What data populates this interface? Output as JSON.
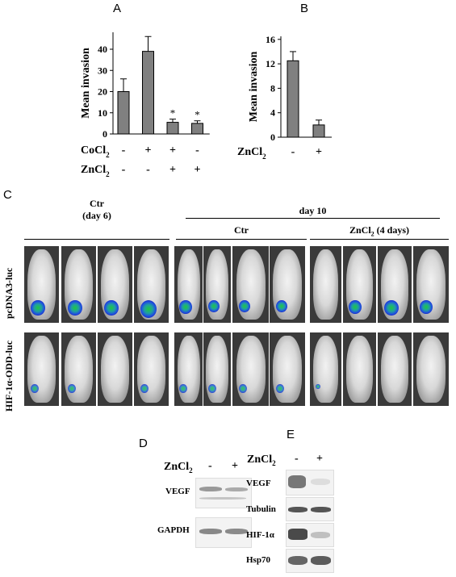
{
  "panels": {
    "A": {
      "letter": "A",
      "chart_data": {
        "type": "bar",
        "ylabel": "Mean invasion",
        "yticks": [
          0,
          10,
          20,
          30,
          40
        ],
        "ylim": [
          0,
          48
        ],
        "values": [
          20,
          39,
          5.5,
          5
        ],
        "errors": [
          6,
          7,
          1.5,
          1.2
        ],
        "significance": [
          "",
          "",
          "*",
          "*"
        ],
        "treatment_rows": [
          {
            "label": "CoCl",
            "sub": "2",
            "marks": [
              "-",
              "+",
              "+",
              "-"
            ]
          },
          {
            "label": "ZnCl",
            "sub": "2",
            "marks": [
              "-",
              "-",
              "+",
              "+"
            ]
          }
        ],
        "bar_color": "#808080"
      }
    },
    "B": {
      "letter": "B",
      "chart_data": {
        "type": "bar",
        "ylabel": "Mean invasion",
        "yticks": [
          0,
          4,
          8,
          12,
          16
        ],
        "ylim": [
          0,
          16.5
        ],
        "values": [
          12.5,
          2
        ],
        "errors": [
          1.5,
          0.8
        ],
        "treatment_rows": [
          {
            "label": "ZnCl",
            "sub": "2",
            "marks": [
              "-",
              "+"
            ]
          }
        ],
        "bar_color": "#808080"
      }
    },
    "C": {
      "letter": "C",
      "group1_line1": "Ctr",
      "group1_line2": "(day 6)",
      "day_header": "day 10",
      "group2": "Ctr",
      "group3_main": "ZnCl",
      "group3_sub": "2",
      "group3_suffix": "(4 days)",
      "row1_label": "pcDNA3-luc",
      "row2_label": "HIF-1α-ODD-luc"
    },
    "D": {
      "letter": "D",
      "header_main": "ZnCl",
      "header_sub": "2",
      "lane_marks": [
        "-",
        "+"
      ],
      "rows": [
        "VEGF",
        "GAPDH"
      ]
    },
    "E": {
      "letter": "E",
      "header_main": "ZnCl",
      "header_sub": "2",
      "lane_marks": [
        "-",
        "+"
      ],
      "rows": [
        "VEGF",
        "Tubulin",
        "HIF-1α",
        "Hsp70"
      ]
    }
  }
}
